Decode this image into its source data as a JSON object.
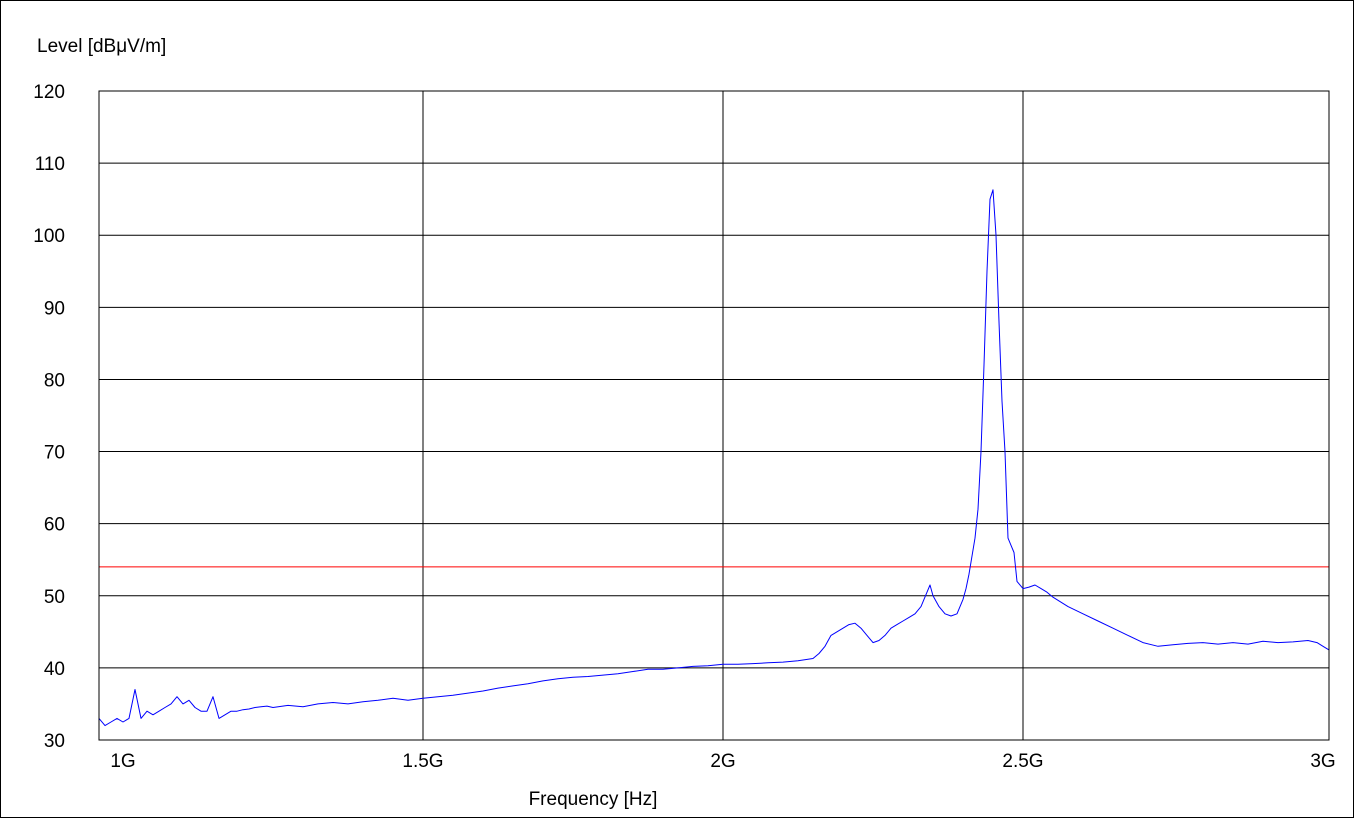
{
  "chart_data": {
    "type": "line",
    "ylabel": "Level [dBμV/m]",
    "xlabel": "Frequency [Hz]",
    "xlim": [
      960000000,
      3010000000
    ],
    "ylim": [
      30,
      120
    ],
    "x_ticks": [
      {
        "value": 1000000000,
        "label": "1G"
      },
      {
        "value": 1500000000,
        "label": "1.5G"
      },
      {
        "value": 2000000000,
        "label": "2G"
      },
      {
        "value": 2500000000,
        "label": "2.5G"
      },
      {
        "value": 3000000000,
        "label": "3G"
      }
    ],
    "x_gridlines": [
      1500000000,
      2000000000,
      2500000000
    ],
    "y_ticks": [
      {
        "value": 30,
        "label": "30"
      },
      {
        "value": 40,
        "label": "40"
      },
      {
        "value": 50,
        "label": "50"
      },
      {
        "value": 60,
        "label": "60"
      },
      {
        "value": 70,
        "label": "70"
      },
      {
        "value": 80,
        "label": "80"
      },
      {
        "value": 90,
        "label": "90"
      },
      {
        "value": 100,
        "label": "100"
      },
      {
        "value": 110,
        "label": "110"
      },
      {
        "value": 120,
        "label": "120"
      }
    ],
    "grid": true,
    "limit_line": {
      "value": 54,
      "color": "#ff0000"
    },
    "series": [
      {
        "color": "#0000ff",
        "x": [
          960000000,
          970000000,
          980000000,
          990000000,
          1000000000,
          1010000000,
          1020000000,
          1030000000,
          1040000000,
          1050000000,
          1060000000,
          1070000000,
          1080000000,
          1090000000,
          1100000000,
          1110000000,
          1120000000,
          1130000000,
          1140000000,
          1150000000,
          1160000000,
          1170000000,
          1180000000,
          1190000000,
          1200000000,
          1210000000,
          1220000000,
          1230000000,
          1240000000,
          1250000000,
          1275000000,
          1300000000,
          1325000000,
          1350000000,
          1375000000,
          1400000000,
          1425000000,
          1450000000,
          1475000000,
          1500000000,
          1525000000,
          1550000000,
          1575000000,
          1600000000,
          1625000000,
          1650000000,
          1675000000,
          1700000000,
          1725000000,
          1750000000,
          1775000000,
          1800000000,
          1825000000,
          1850000000,
          1875000000,
          1900000000,
          1925000000,
          1950000000,
          1975000000,
          2000000000,
          2025000000,
          2050000000,
          2075000000,
          2100000000,
          2125000000,
          2150000000,
          2160000000,
          2170000000,
          2180000000,
          2190000000,
          2200000000,
          2210000000,
          2220000000,
          2230000000,
          2240000000,
          2250000000,
          2260000000,
          2270000000,
          2280000000,
          2290000000,
          2300000000,
          2310000000,
          2320000000,
          2330000000,
          2340000000,
          2345000000,
          2350000000,
          2360000000,
          2370000000,
          2380000000,
          2390000000,
          2400000000,
          2405000000,
          2410000000,
          2415000000,
          2420000000,
          2425000000,
          2430000000,
          2435000000,
          2440000000,
          2445000000,
          2450000000,
          2455000000,
          2460000000,
          2465000000,
          2470000000,
          2475000000,
          2480000000,
          2485000000,
          2490000000,
          2500000000,
          2510000000,
          2520000000,
          2530000000,
          2540000000,
          2550000000,
          2575000000,
          2600000000,
          2625000000,
          2650000000,
          2675000000,
          2700000000,
          2725000000,
          2750000000,
          2775000000,
          2800000000,
          2825000000,
          2850000000,
          2875000000,
          2900000000,
          2925000000,
          2950000000,
          2975000000,
          2990000000,
          3000000000,
          3010000000
        ],
        "y": [
          33,
          32,
          32.5,
          33,
          32.5,
          33,
          37,
          33,
          34,
          33.5,
          34,
          34.5,
          35,
          36,
          35,
          35.5,
          34.5,
          34,
          34,
          36,
          33,
          33.5,
          34,
          34,
          34.2,
          34.3,
          34.5,
          34.6,
          34.7,
          34.5,
          34.8,
          34.6,
          35,
          35.2,
          35,
          35.3,
          35.5,
          35.8,
          35.5,
          35.8,
          36,
          36.2,
          36.5,
          36.8,
          37.2,
          37.5,
          37.8,
          38.2,
          38.5,
          38.7,
          38.8,
          39,
          39.2,
          39.5,
          39.8,
          39.8,
          40,
          40.2,
          40.3,
          40.5,
          40.5,
          40.6,
          40.7,
          40.8,
          41,
          41.3,
          42,
          43,
          44.5,
          45,
          45.5,
          46,
          46.2,
          45.5,
          44.5,
          43.5,
          43.8,
          44.5,
          45.5,
          46,
          46.5,
          47,
          47.5,
          48.5,
          50.5,
          51.5,
          50,
          48.5,
          47.5,
          47.2,
          47.5,
          49.5,
          51,
          53,
          55.5,
          58,
          62,
          70,
          82,
          95,
          105,
          106.3,
          100,
          88,
          77,
          70,
          58,
          57,
          56,
          52,
          51,
          51.2,
          51.5,
          51,
          50.5,
          49.8,
          48.5,
          47.5,
          46.5,
          45.5,
          44.5,
          43.5,
          43,
          43.2,
          43.4,
          43.5,
          43.3,
          43.5,
          43.3,
          43.7,
          43.5,
          43.6,
          43.8,
          43.5,
          43,
          42.5
        ]
      }
    ]
  }
}
